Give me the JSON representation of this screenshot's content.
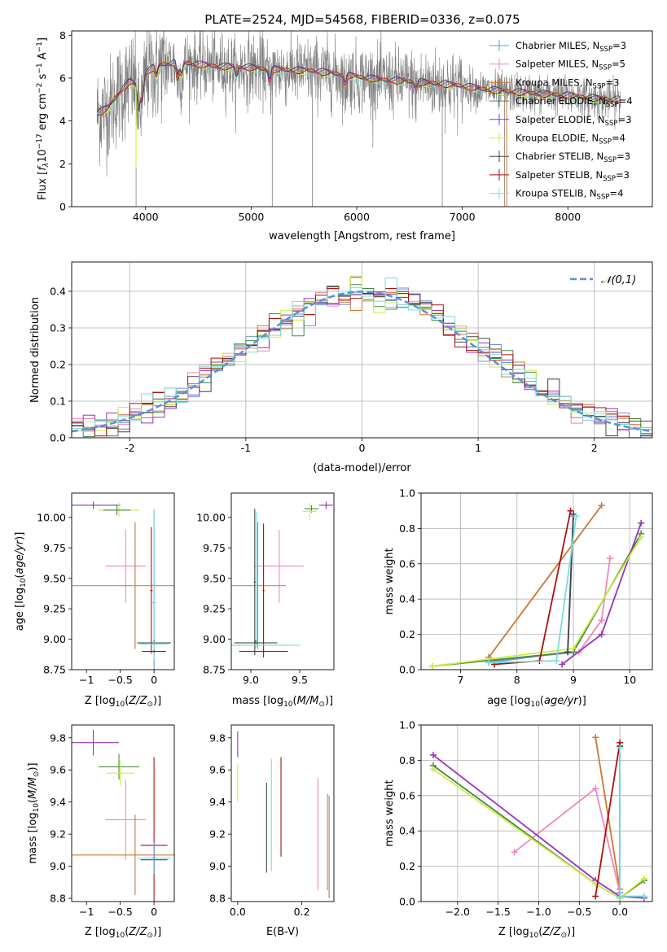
{
  "figure": {
    "title": "PLATE=2524, MJD=54568, FIBERID=0336, z=0.075"
  },
  "colors": {
    "chabrier_miles": "#6699dd",
    "salpeter_miles": "#ee88bb",
    "kroupa_miles": "#cc7733",
    "chabrier_elodie": "#448844",
    "salpeter_elodie": "#9933bb",
    "kroupa_elodie": "#ccee44",
    "chabrier_stelib": "#444444",
    "salpeter_stelib": "#aa1111",
    "kroupa_stelib": "#77dddd",
    "data_gray": "#808080",
    "normal_curve": "#5b8fdb"
  },
  "chart_data": [
    {
      "type": "line",
      "panel": "spectrum",
      "xlabel": "wavelength [Angstrom, rest frame]",
      "ylabel": "Flux [f_λ10^-17 erg cm^-2 s^-1 A^-1]",
      "xlim": [
        3300,
        8800
      ],
      "ylim": [
        0,
        8.2
      ],
      "xticks": [
        4000,
        5000,
        6000,
        7000,
        8000
      ],
      "yticks": [
        0,
        2,
        4,
        6,
        8
      ],
      "legend_position": "top-right",
      "legend": [
        {
          "base": "Chabrier MILES, N",
          "sub": "SSP",
          "tail": "=3",
          "color_key": "chabrier_miles"
        },
        {
          "base": "Salpeter MILES, N",
          "sub": "SSP",
          "tail": "=5",
          "color_key": "salpeter_miles"
        },
        {
          "base": "Kroupa MILES, N",
          "sub": "SSP",
          "tail": "=3",
          "color_key": "kroupa_miles"
        },
        {
          "base": "Chabrier ELODIE, N",
          "sub": "SSP",
          "tail": "=4",
          "color_key": "chabrier_elodie"
        },
        {
          "base": "Salpeter ELODIE, N",
          "sub": "SSP",
          "tail": "=3",
          "color_key": "salpeter_elodie"
        },
        {
          "base": "Kroupa ELODIE, N",
          "sub": "SSP",
          "tail": "=4",
          "color_key": "kroupa_elodie"
        },
        {
          "base": "Chabrier STELIB, N",
          "sub": "SSP",
          "tail": "=3",
          "color_key": "chabrier_stelib"
        },
        {
          "base": "Salpeter STELIB, N",
          "sub": "SSP",
          "tail": "=3",
          "color_key": "salpeter_stelib"
        },
        {
          "base": "Kroupa STELIB, N",
          "sub": "SSP",
          "tail": "=4",
          "color_key": "kroupa_stelib"
        }
      ],
      "continuum_knots": {
        "x": [
          3540,
          3650,
          3750,
          3850,
          3950,
          4000,
          4100,
          4300,
          4500,
          4700,
          4900,
          5100,
          5300,
          5600,
          5900,
          6200,
          6500,
          6800,
          7000,
          7200,
          7400,
          7700,
          8000,
          8300,
          8500
        ],
        "y": [
          4.3,
          4.6,
          5.3,
          5.8,
          5.6,
          6.2,
          6.55,
          6.7,
          6.6,
          6.5,
          6.5,
          6.4,
          6.35,
          6.3,
          6.1,
          5.9,
          5.8,
          5.7,
          5.6,
          5.45,
          5.35,
          5.25,
          5.15,
          5.0,
          4.95
        ]
      },
      "absorption_features": [
        {
          "x": 3934,
          "depth": 1.4
        },
        {
          "x": 3969,
          "depth": 1.1
        },
        {
          "x": 4102,
          "depth": 0.6
        },
        {
          "x": 4305,
          "depth": 0.9
        },
        {
          "x": 4340,
          "depth": 0.7
        },
        {
          "x": 4861,
          "depth": 0.5
        },
        {
          "x": 5175,
          "depth": 0.7
        },
        {
          "x": 5890,
          "depth": 0.6
        },
        {
          "x": 6563,
          "depth": 0.4
        }
      ],
      "spikes": [
        {
          "x": 3910,
          "y": 0
        },
        {
          "x": 5200,
          "y": 0
        },
        {
          "x": 5580,
          "y": 0
        },
        {
          "x": 6810,
          "y": 0
        },
        {
          "x": 7400,
          "y": 0
        }
      ]
    },
    {
      "type": "histogram",
      "panel": "residuals",
      "xlabel": "(data-model)/error",
      "ylabel": "Normed distribution",
      "xlim": [
        -2.5,
        2.5
      ],
      "ylim": [
        0,
        0.48
      ],
      "xticks": [
        -2,
        -1,
        0,
        1,
        2
      ],
      "yticks": [
        0.0,
        0.1,
        0.2,
        0.3,
        0.4
      ],
      "grid": true,
      "legend_position": "top-right",
      "curve_label": "𝒩(0,1)",
      "bin_width": 0.1,
      "n_bins": 50,
      "series_colors": [
        "chabrier_miles",
        "salpeter_miles",
        "kroupa_miles",
        "chabrier_elodie",
        "salpeter_elodie",
        "kroupa_elodie",
        "chabrier_stelib",
        "salpeter_stelib",
        "kroupa_stelib"
      ]
    },
    {
      "type": "errorbar",
      "panel": "age_vs_Z",
      "xlabel": "Z [log10(Z/Z⊙)]",
      "ylabel": "age  [log10(age/yr)]",
      "xlim": [
        -1.22,
        0.3
      ],
      "ylim": [
        8.75,
        10.2
      ],
      "xticks": [
        -1,
        -0.5,
        0
      ],
      "yticks": [
        8.75,
        9.0,
        9.25,
        9.5,
        9.75,
        10.0
      ],
      "points": [
        {
          "c": "salpeter_elodie",
          "x": -0.9,
          "y": 10.1,
          "xe": 0.4,
          "ye": 0.03
        },
        {
          "c": "kroupa_elodie",
          "x": -0.52,
          "y": 10.06,
          "xe": 0.3,
          "ye": 0.06
        },
        {
          "c": "chabrier_elodie",
          "x": -0.55,
          "y": 10.06,
          "xe": 0.2,
          "ye": 0.04
        },
        {
          "c": "salpeter_miles",
          "x": -0.42,
          "y": 9.6,
          "xe": 0.3,
          "ye": 0.3
        },
        {
          "c": "kroupa_miles",
          "x": -0.28,
          "y": 9.44,
          "xe": 0.93,
          "ye": 0.52
        },
        {
          "c": "salpeter_stelib",
          "x": -0.04,
          "y": 9.4,
          "xe": 0.02,
          "ye": 0.52
        },
        {
          "c": "chabrier_miles",
          "x": 0.0,
          "y": 9.3,
          "xe": 0.02,
          "ye": 0.77
        },
        {
          "c": "kroupa_stelib",
          "x": 0.0,
          "y": 9.45,
          "xe": 0.02,
          "ye": 0.62
        },
        {
          "c": "chabrier_stelib",
          "x": 0.0,
          "y": 8.97,
          "xe": 0.25,
          "ye": 0.02
        },
        {
          "c": "kroupa_stelib",
          "x": 0.0,
          "y": 8.96,
          "xe": 0.22,
          "ye": 0.02
        },
        {
          "c": "salpeter_stelib",
          "x": 0.0,
          "y": 8.9,
          "xe": 0.18,
          "ye": 0.01
        }
      ]
    },
    {
      "type": "errorbar",
      "panel": "age_vs_mass",
      "xlabel": "mass [log10(M/M⊙)]",
      "ylabel": "",
      "xlim": [
        8.8,
        9.85
      ],
      "ylim": [
        8.75,
        10.2
      ],
      "xticks": [
        9.0,
        9.5
      ],
      "yticks": [
        8.75,
        9.0,
        9.25,
        9.5,
        9.75,
        10.0
      ],
      "points": [
        {
          "c": "salpeter_elodie",
          "x": 9.77,
          "y": 10.1,
          "xe": 0.07,
          "ye": 0.03
        },
        {
          "c": "chabrier_elodie",
          "x": 9.62,
          "y": 10.07,
          "xe": 0.07,
          "ye": 0.03
        },
        {
          "c": "kroupa_elodie",
          "x": 9.6,
          "y": 10.05,
          "xe": 0.07,
          "ye": 0.07
        },
        {
          "c": "salpeter_miles",
          "x": 9.29,
          "y": 9.6,
          "xe": 0.25,
          "ye": 0.3
        },
        {
          "c": "kroupa_miles",
          "x": 9.07,
          "y": 9.44,
          "xe": 0.29,
          "ye": 0.52
        },
        {
          "c": "salpeter_stelib",
          "x": 9.13,
          "y": 9.4,
          "xe": 0.01,
          "ye": 0.55
        },
        {
          "c": "chabrier_stelib",
          "x": 9.04,
          "y": 9.47,
          "xe": 0.01,
          "ye": 0.6
        },
        {
          "c": "kroupa_stelib",
          "x": 9.06,
          "y": 9.5,
          "xe": 0.01,
          "ye": 0.55
        },
        {
          "c": "chabrier_stelib",
          "x": 9.05,
          "y": 8.97,
          "xe": 0.22,
          "ye": 0.02
        },
        {
          "c": "kroupa_stelib",
          "x": 9.05,
          "y": 8.95,
          "xe": 0.45,
          "ye": 0.02
        },
        {
          "c": "salpeter_stelib",
          "x": 9.13,
          "y": 8.9,
          "xe": 0.25,
          "ye": 0.01
        }
      ]
    },
    {
      "type": "line",
      "panel": "mass_weight_vs_age",
      "xlabel": "age  [log10(age/yr)]",
      "ylabel": "mass weight",
      "xlim": [
        6.3,
        10.4
      ],
      "ylim": [
        0,
        1.0
      ],
      "xticks": [
        7,
        8,
        9,
        10
      ],
      "yticks": [
        0.0,
        0.2,
        0.4,
        0.6,
        0.8,
        1.0
      ],
      "grid": true,
      "series": [
        {
          "c": "kroupa_miles",
          "x": [
            7.5,
            9.5
          ],
          "y": [
            0.07,
            0.93
          ]
        },
        {
          "c": "salpeter_miles",
          "x": [
            7.5,
            9.1,
            9.5,
            9.65
          ],
          "y": [
            0.05,
            0.1,
            0.28,
            0.63
          ]
        },
        {
          "c": "chabrier_miles",
          "x": [
            7.5,
            8.9,
            9.0
          ],
          "y": [
            0.04,
            0.1,
            0.87
          ]
        },
        {
          "c": "chabrier_elodie",
          "x": [
            6.5,
            9.0,
            10.2
          ],
          "y": [
            0.02,
            0.1,
            0.77
          ]
        },
        {
          "c": "salpeter_elodie",
          "x": [
            8.8,
            9.5,
            10.2
          ],
          "y": [
            0.03,
            0.2,
            0.83
          ]
        },
        {
          "c": "kroupa_elodie",
          "x": [
            6.5,
            9.0,
            10.2
          ],
          "y": [
            0.02,
            0.12,
            0.75
          ]
        },
        {
          "c": "chabrier_stelib",
          "x": [
            8.9,
            9.0
          ],
          "y": [
            0.1,
            0.88
          ]
        },
        {
          "c": "salpeter_stelib",
          "x": [
            7.6,
            8.4,
            8.95
          ],
          "y": [
            0.03,
            0.05,
            0.9
          ]
        },
        {
          "c": "kroupa_stelib",
          "x": [
            7.5,
            8.7,
            9.05
          ],
          "y": [
            0.04,
            0.05,
            0.87
          ]
        }
      ]
    },
    {
      "type": "errorbar",
      "panel": "mass_vs_Z",
      "xlabel": "Z [log10(Z/Z⊙)]",
      "ylabel": "mass [log10(M/M⊙)]",
      "xlim": [
        -1.22,
        0.3
      ],
      "ylim": [
        8.78,
        9.88
      ],
      "xticks": [
        -1,
        -0.5,
        0
      ],
      "yticks": [
        8.8,
        9.0,
        9.2,
        9.4,
        9.6,
        9.8
      ],
      "points": [
        {
          "c": "salpeter_elodie",
          "x": -0.9,
          "y": 9.77,
          "xe": 0.38,
          "ye": 0.08
        },
        {
          "c": "chabrier_elodie",
          "x": -0.52,
          "y": 9.62,
          "xe": 0.3,
          "ye": 0.08
        },
        {
          "c": "kroupa_elodie",
          "x": -0.5,
          "y": 9.58,
          "xe": 0.2,
          "ye": 0.08
        },
        {
          "c": "salpeter_miles",
          "x": -0.42,
          "y": 9.29,
          "xe": 0.3,
          "ye": 0.25
        },
        {
          "c": "kroupa_miles",
          "x": -0.28,
          "y": 9.07,
          "xe": 0.93,
          "ye": 0.25
        },
        {
          "c": "salpeter_stelib",
          "x": 0.0,
          "y": 9.13,
          "xe": 0.2,
          "ye": 0.55
        },
        {
          "c": "chabrier_stelib",
          "x": 0.0,
          "y": 9.04,
          "xe": 0.2,
          "ye": 0.1
        },
        {
          "c": "kroupa_stelib",
          "x": 0.0,
          "y": 9.05,
          "xe": 0.25,
          "ye": 0.1
        },
        {
          "c": "chabrier_miles",
          "x": 0.0,
          "y": 9.05,
          "xe": 0.02,
          "ye": 0.1
        }
      ]
    },
    {
      "type": "errorbar",
      "panel": "mass_vs_ebv",
      "xlabel": "E(B-V)",
      "ylabel": "",
      "xlim": [
        -0.02,
        0.3
      ],
      "ylim": [
        8.78,
        9.88
      ],
      "xticks": [
        0.0,
        0.2
      ],
      "yticks": [
        8.8,
        9.0,
        9.2,
        9.4,
        9.6,
        9.8
      ],
      "points": [
        {
          "c": "salpeter_elodie",
          "x": 0.0,
          "y": 9.76,
          "xe": 0.0,
          "ye": 0.08
        },
        {
          "c": "kroupa_elodie",
          "x": 0.0,
          "y": 9.52,
          "xe": 0.0,
          "ye": 0.12
        },
        {
          "c": "chabrier_stelib",
          "x": 0.09,
          "y": 9.24,
          "xe": 0.0,
          "ye": 0.28
        },
        {
          "c": "kroupa_stelib",
          "x": 0.105,
          "y": 9.32,
          "xe": 0.0,
          "ye": 0.35
        },
        {
          "c": "salpeter_stelib",
          "x": 0.135,
          "y": 9.37,
          "xe": 0.0,
          "ye": 0.31
        },
        {
          "c": "salpeter_miles",
          "x": 0.25,
          "y": 9.2,
          "xe": 0.0,
          "ye": 0.35
        },
        {
          "c": "chabrier_miles",
          "x": 0.28,
          "y": 9.15,
          "xe": 0.0,
          "ye": 0.3
        },
        {
          "c": "kroupa_miles",
          "x": 0.285,
          "y": 9.12,
          "xe": 0.0,
          "ye": 0.32
        }
      ]
    },
    {
      "type": "line",
      "panel": "mass_weight_vs_Z",
      "xlabel": "Z [log10(Z/Z⊙)]",
      "ylabel": "mass weight",
      "xlim": [
        -2.45,
        0.4
      ],
      "ylim": [
        0,
        1.0
      ],
      "xticks": [
        -2.0,
        -1.5,
        -1.0,
        -0.5,
        0.0
      ],
      "yticks": [
        0.0,
        0.2,
        0.4,
        0.6,
        0.8,
        1.0
      ],
      "grid": true,
      "series": [
        {
          "c": "kroupa_miles",
          "x": [
            -0.3,
            0.0
          ],
          "y": [
            0.93,
            0.07
          ]
        },
        {
          "c": "salpeter_miles",
          "x": [
            -1.3,
            -0.3,
            0.0
          ],
          "y": [
            0.28,
            0.64,
            0.05
          ]
        },
        {
          "c": "chabrier_miles",
          "x": [
            0.0,
            0.0
          ],
          "y": [
            0.88,
            0.05
          ]
        },
        {
          "c": "chabrier_elodie",
          "x": [
            -2.3,
            -0.3,
            0.0,
            0.3
          ],
          "y": [
            0.77,
            0.1,
            0.02,
            0.12
          ]
        },
        {
          "c": "salpeter_elodie",
          "x": [
            -2.3,
            -0.3,
            0.0,
            0.3
          ],
          "y": [
            0.83,
            0.12,
            0.03,
            0.02
          ]
        },
        {
          "c": "kroupa_elodie",
          "x": [
            -2.3,
            -0.3,
            0.0,
            0.3
          ],
          "y": [
            0.75,
            0.1,
            0.02,
            0.13
          ]
        },
        {
          "c": "chabrier_stelib",
          "x": [
            0.0,
            0.0
          ],
          "y": [
            0.88,
            0.03
          ]
        },
        {
          "c": "salpeter_stelib",
          "x": [
            -0.3,
            0.0
          ],
          "y": [
            0.03,
            0.9
          ]
        },
        {
          "c": "kroupa_stelib",
          "x": [
            0.0,
            0.0,
            0.3
          ],
          "y": [
            0.87,
            0.03,
            0.03
          ]
        }
      ]
    }
  ]
}
